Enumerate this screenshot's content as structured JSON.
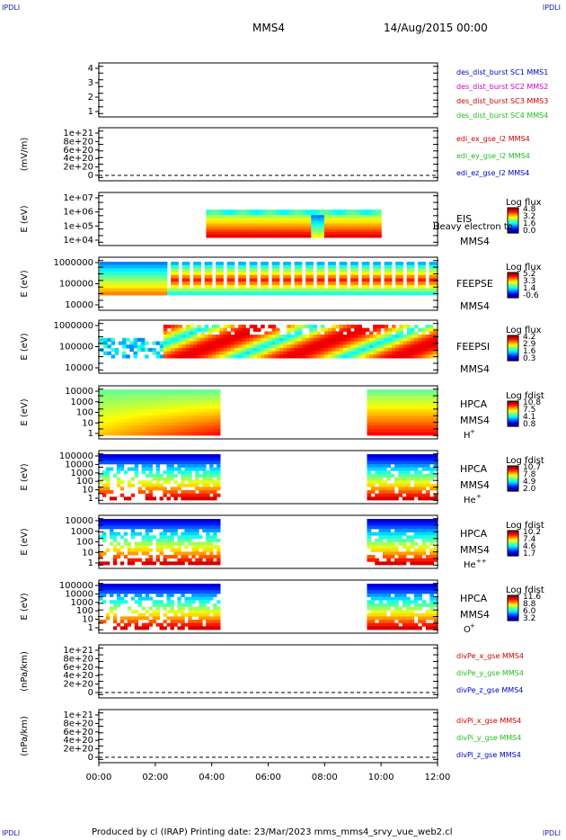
{
  "corner_label": "IPDLI",
  "header": {
    "spacecraft": "MMS4",
    "date": "14/Aug/2015 00:00"
  },
  "footer": "Produced by cl (IRAP)   Printing date: 23/Mar/2023   mms_mms4_srvy_vue_web2.cl",
  "colors": {
    "red": "#cc0000",
    "green": "#22bb22",
    "blue": "#0000bb",
    "magenta": "#cc00cc",
    "black": "#000000"
  },
  "chart_data": {
    "type": "heatmap",
    "x_axis": {
      "ticks": [
        "00:00",
        "02:00",
        "04:00",
        "06:00",
        "08:00",
        "10:00",
        "12:00"
      ],
      "range_hours": [
        0,
        12
      ]
    },
    "panels": [
      {
        "id": "sc-positions",
        "type": "line",
        "ylabel": "",
        "yticks": [
          "4",
          "3",
          "2",
          "1"
        ],
        "legend": [
          {
            "text": "des_dist_burst SC1 MMS1",
            "color": "#0000bb"
          },
          {
            "text": "des_dist_burst SC2 MMS2",
            "color": "#cc00cc"
          },
          {
            "text": "des_dist_burst SC3 MMS3",
            "color": "#cc0000"
          },
          {
            "text": "des_dist_burst SC4 MMS4",
            "color": "#22bb22"
          }
        ]
      },
      {
        "id": "edi",
        "type": "line",
        "ylabel": "(mV/m)",
        "yticks": [
          "1e+21",
          "8e+20",
          "6e+20",
          "4e+20",
          "2e+20",
          "0"
        ],
        "legend": [
          {
            "text": "edi_ex_gse_l2 MMS4",
            "color": "#cc0000"
          },
          {
            "text": "edi_ey_gse_l2 MMS4",
            "color": "#22bb22"
          },
          {
            "text": "edi_ez_gse_l2 MMS4",
            "color": "#0000bb"
          }
        ]
      },
      {
        "id": "eis",
        "type": "heatmap",
        "ylabel": "E (eV)",
        "yticks": [
          "1e+07",
          "1e+06",
          "1e+05",
          "1e+04"
        ],
        "right_labels": [
          "EIS",
          "MMS4"
        ],
        "overlay_text": "Heavy electron to",
        "colorbar": {
          "title": "Log flux",
          "ticks": [
            "4.8",
            "3.2",
            "1.6",
            "0.0"
          ]
        },
        "data_span_hours": [
          3.8,
          10.0
        ]
      },
      {
        "id": "feepse",
        "type": "heatmap",
        "ylabel": "E (eV)",
        "yticks": [
          "1000000",
          "100000",
          "10000"
        ],
        "right_labels": [
          "FEEPSE",
          "MMS4"
        ],
        "colorbar": {
          "title": "Log flux",
          "ticks": [
            "5.2",
            "3.3",
            "1.4",
            "-0.6"
          ]
        },
        "data_span_hours": [
          0,
          12
        ]
      },
      {
        "id": "feepsi",
        "type": "heatmap",
        "ylabel": "E (eV)",
        "yticks": [
          "1000000",
          "100000",
          "10000"
        ],
        "right_labels": [
          "FEEPSI",
          "MMS4"
        ],
        "colorbar": {
          "title": "Log flux",
          "ticks": [
            "4.2",
            "2.9",
            "1.6",
            "0.3"
          ]
        },
        "data_span_hours": [
          0,
          12
        ]
      },
      {
        "id": "hpca-h",
        "type": "heatmap",
        "ylabel": "E (eV)",
        "yticks": [
          "10000",
          "1000",
          "100",
          "10",
          "1"
        ],
        "right_labels": [
          "HPCA",
          "MMS4"
        ],
        "species": "H",
        "species_sup": "+",
        "colorbar": {
          "title": "Log fdist",
          "ticks": [
            "10.8",
            "7.5",
            "4.1",
            "0.8"
          ]
        },
        "data_span_hours": [
          [
            0,
            4.3
          ],
          [
            9.5,
            12
          ]
        ]
      },
      {
        "id": "hpca-he",
        "type": "heatmap",
        "ylabel": "E (eV)",
        "yticks": [
          "100000",
          "10000",
          "1000",
          "100",
          "10",
          "1"
        ],
        "right_labels": [
          "HPCA",
          "MMS4"
        ],
        "species": "He",
        "species_sup": "+",
        "colorbar": {
          "title": "Log fdist",
          "ticks": [
            "10.7",
            "7.8",
            "4.9",
            "2.0"
          ]
        },
        "data_span_hours": [
          [
            0,
            4.3
          ],
          [
            9.5,
            12
          ]
        ]
      },
      {
        "id": "hpca-he2",
        "type": "heatmap",
        "ylabel": "E (eV)",
        "yticks": [
          "10000",
          "1000",
          "100",
          "10",
          "1"
        ],
        "right_labels": [
          "HPCA",
          "MMS4"
        ],
        "species": "He",
        "species_sup": "++",
        "colorbar": {
          "title": "Log fdist",
          "ticks": [
            "10.2",
            "7.4",
            "4.6",
            "1.7"
          ]
        },
        "data_span_hours": [
          [
            0,
            4.3
          ],
          [
            9.5,
            12
          ]
        ]
      },
      {
        "id": "hpca-o",
        "type": "heatmap",
        "ylabel": "E (eV)",
        "yticks": [
          "100000",
          "10000",
          "1000",
          "100",
          "10",
          "1"
        ],
        "right_labels": [
          "HPCA",
          "MMS4"
        ],
        "species": "O",
        "species_sup": "+",
        "colorbar": {
          "title": "Log fdist",
          "ticks": [
            "11.6",
            "8.8",
            "6.0",
            "3.2"
          ]
        },
        "data_span_hours": [
          [
            0,
            4.3
          ],
          [
            9.5,
            12
          ]
        ]
      },
      {
        "id": "divpe",
        "type": "line",
        "ylabel": "(nPa/km)",
        "yticks": [
          "1e+21",
          "8e+20",
          "6e+20",
          "4e+20",
          "2e+20",
          "0"
        ],
        "legend": [
          {
            "text": "divPe_x_gse MMS4",
            "color": "#cc0000"
          },
          {
            "text": "divPe_y_gse MMS4",
            "color": "#22bb22"
          },
          {
            "text": "divPe_z_gse MMS4",
            "color": "#0000bb"
          }
        ]
      },
      {
        "id": "divpi",
        "type": "line",
        "ylabel": "(nPa/km)",
        "yticks": [
          "1e+21",
          "8e+20",
          "6e+20",
          "4e+20",
          "2e+20",
          "0"
        ],
        "legend": [
          {
            "text": "divPi_x_gse MMS4",
            "color": "#cc0000"
          },
          {
            "text": "divPi_y_gse MMS4",
            "color": "#22bb22"
          },
          {
            "text": "divPi_z_gse MMS4",
            "color": "#0000bb"
          }
        ]
      }
    ]
  }
}
